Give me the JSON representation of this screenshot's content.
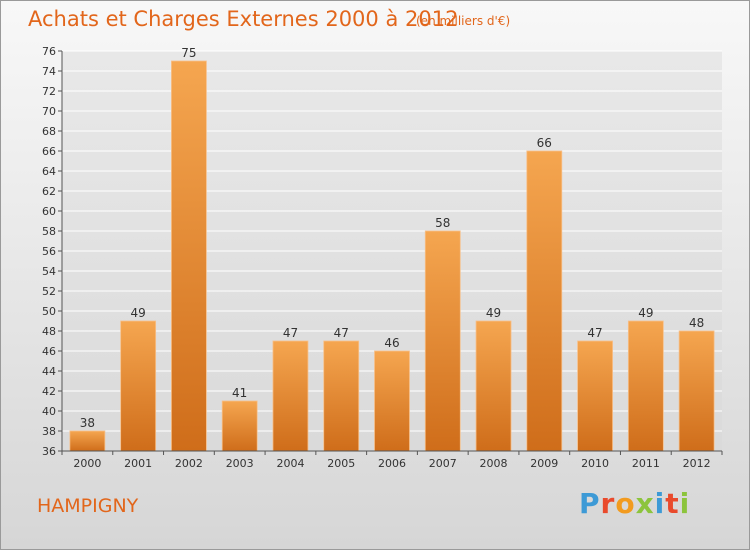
{
  "header": {
    "title": "Achats et Charges Externes 2000 à 2012",
    "subtitle": "(en milliers d'€)"
  },
  "footer": {
    "place": "HAMPIGNY",
    "logo_text": "Proxiti"
  },
  "colors": {
    "accent": "#e2661b",
    "bar_light": "#f5a650",
    "bar_dark": "#d06f1c",
    "grid": "#ffffff"
  },
  "chart_data": {
    "type": "bar",
    "title": "Achats et Charges Externes 2000 à 2012",
    "subtitle": "(en milliers d'€)",
    "categories": [
      "2000",
      "2001",
      "2002",
      "2003",
      "2004",
      "2005",
      "2006",
      "2007",
      "2008",
      "2009",
      "2010",
      "2011",
      "2012"
    ],
    "values": [
      38,
      49,
      75,
      41,
      47,
      47,
      46,
      58,
      49,
      66,
      47,
      49,
      48
    ],
    "ylim": [
      36,
      76
    ],
    "yticks": [
      36,
      38,
      40,
      42,
      44,
      46,
      48,
      50,
      52,
      54,
      56,
      58,
      60,
      62,
      64,
      66,
      68,
      70,
      72,
      74,
      76
    ],
    "grid": true,
    "data_labels": true
  }
}
